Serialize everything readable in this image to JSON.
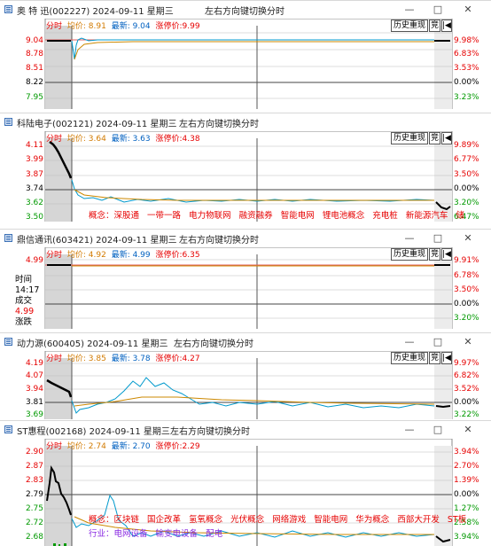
{
  "panels": [
    {
      "title": "奥 特 迅(002227) 2024-09-11 星期三",
      "hint": "左右方向键切换分时",
      "label": "分时",
      "avg_label": "均价: 8.91",
      "latest_label": "最新: 9.04",
      "limit_label": "涨停价:9.99",
      "history_btn": "历史重现",
      "auction_btn": "竞",
      "prices": [
        "9.04",
        "8.78",
        "8.51",
        "8.22",
        "7.95"
      ],
      "pcts": [
        "9.98%",
        "6.83%",
        "3.53%",
        "0.00%",
        "3.23%"
      ],
      "tags": [],
      "industry": []
    },
    {
      "title": "科陆电子(002121) 2024-09-11 星期三",
      "hint": "左右方向键切换分时",
      "label": "分时",
      "avg_label": "均价: 3.64",
      "latest_label": "最新: 3.63",
      "limit_label": "涨停价:4.38",
      "history_btn": "历史重现",
      "auction_btn": "竞",
      "prices": [
        "4.11",
        "3.99",
        "3.87",
        "3.74",
        "3.62",
        "3.50"
      ],
      "pcts": [
        "9.89%",
        "6.77%",
        "3.50%",
        "0.00%",
        "3.20%",
        "6.47%"
      ],
      "tags": [
        "概念：深股通",
        "一带一路",
        "电力物联网",
        "融资融券",
        "智能电网",
        "锂电池概念",
        "充电桩",
        "新能源汽车",
        "储"
      ],
      "industry": []
    },
    {
      "title": "鼎信通讯(603421) 2024-09-11 星期三",
      "hint": "左右方向键切换分时",
      "label": "分时",
      "avg_label": "均价: 4.92",
      "latest_label": "最新: 4.99",
      "limit_label": "涨停价:6.35",
      "history_btn": "历史重现",
      "auction_btn": "竞",
      "prices": [
        "4.99"
      ],
      "pcts": [
        "9.91%",
        "6.78%",
        "3.50%",
        "0.00%",
        "3.20%"
      ],
      "tooltip": [
        "时间",
        "14:17",
        "成交",
        "4.99",
        "涨跌"
      ],
      "tags": [],
      "industry": []
    },
    {
      "title": "动力源(600405) 2024-09-11 星期三",
      "hint": "左右方向键切换分时",
      "label": "分时",
      "avg_label": "均价: 3.85",
      "latest_label": "最新: 3.78",
      "limit_label": "涨停价:4.27",
      "history_btn": "历史重现",
      "auction_btn": "竞",
      "prices": [
        "4.19",
        "4.07",
        "3.94",
        "3.81",
        "3.69"
      ],
      "pcts": [
        "9.97%",
        "6.82%",
        "3.52%",
        "0.00%",
        "3.22%"
      ],
      "tags": [],
      "industry": []
    },
    {
      "title": "ST惠程(002168) 2024-09-11 星期三",
      "hint": "左右方向键切换分时",
      "label": "分时",
      "avg_label": "均价: 2.74",
      "latest_label": "最新: 2.70",
      "limit_label": "涨停价:2.29",
      "history_btn": "历史重现",
      "auction_btn": "竞",
      "prices": [
        "2.90",
        "2.87",
        "2.83",
        "2.79",
        "2.75",
        "2.72",
        "2.68"
      ],
      "pcts": [
        "3.94%",
        "2.70%",
        "1.39%",
        "0.00%",
        "1.27%",
        "2.58%",
        "3.94%"
      ],
      "tags": [
        "概念：区块链",
        "国企改革",
        "氢氧概念",
        "光伏概念",
        "网络游戏",
        "智能电网",
        "华为概念",
        "西部大开发",
        "ST板"
      ],
      "industry": [
        "行业：电网设备",
        "输变电设备",
        "配电"
      ]
    }
  ],
  "window_controls": {
    "minimize": "—",
    "maximize": "□",
    "close": "✕"
  },
  "toolbar_arrow": "|◀",
  "colors": {
    "up": "#e60000",
    "down": "#009900",
    "price_line": "#0099cc",
    "avg_line": "#cc8800",
    "limit_line": "#e06060"
  }
}
